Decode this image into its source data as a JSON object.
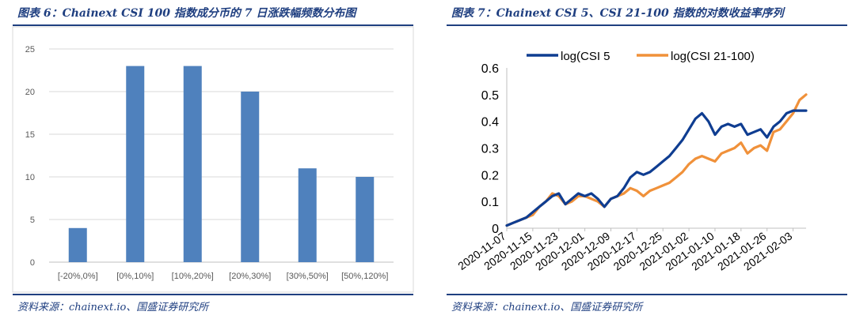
{
  "left": {
    "title": "图表 6：Chainext CSI 100 指数成分币的 7 日涨跌幅频数分布图",
    "source": "资料来源：chainext.io、国盛证券研究所"
  },
  "right": {
    "title": "图表 7：Chainext CSI 5、CSI 21-100 指数的对数收益率序列",
    "source": "资料来源：chainext.io、国盛证券研究所"
  },
  "colors": {
    "brand": "#1f3f80",
    "bar": "#4f81bd",
    "series1": "#0f3d91",
    "series2": "#f0913a"
  },
  "chart_data": [
    {
      "type": "bar",
      "title": "",
      "xlabel": "",
      "ylabel": "",
      "categories": [
        "[-20%,0%]",
        "[0%,10%]",
        "[10%,20%]",
        "[20%,30%]",
        "[30%,50%]",
        "[50%,120%]"
      ],
      "values": [
        4,
        23,
        23,
        20,
        11,
        10
      ],
      "ylim": [
        0,
        25
      ],
      "yticks": [
        0,
        5,
        10,
        15,
        20,
        25
      ],
      "grid": true,
      "legend": "none"
    },
    {
      "type": "line",
      "title": "",
      "xlabel": "",
      "ylabel": "",
      "ylim": [
        0,
        0.6
      ],
      "yticks": [
        "0",
        "0.1",
        "0.2",
        "0.3",
        "0.4",
        "0.5",
        "0.6"
      ],
      "xticks": [
        "2020-11-07",
        "2020-11-15",
        "2020-11-23",
        "2020-12-01",
        "2020-12-09",
        "2020-12-17",
        "2020-12-25",
        "2021-01-02",
        "2021-01-10",
        "2021-01-18",
        "2021-01-26",
        "2021-02-03"
      ],
      "grid": false,
      "legend": "top",
      "x": [
        "2020-11-07",
        "2020-11-09",
        "2020-11-11",
        "2020-11-13",
        "2020-11-15",
        "2020-11-17",
        "2020-11-19",
        "2020-11-21",
        "2020-11-23",
        "2020-11-25",
        "2020-11-27",
        "2020-11-29",
        "2020-12-01",
        "2020-12-03",
        "2020-12-05",
        "2020-12-07",
        "2020-12-09",
        "2020-12-11",
        "2020-12-13",
        "2020-12-15",
        "2020-12-17",
        "2020-12-19",
        "2020-12-21",
        "2020-12-23",
        "2020-12-25",
        "2020-12-27",
        "2020-12-29",
        "2020-12-31",
        "2021-01-02",
        "2021-01-04",
        "2021-01-06",
        "2021-01-08",
        "2021-01-10",
        "2021-01-12",
        "2021-01-14",
        "2021-01-16",
        "2021-01-18",
        "2021-01-20",
        "2021-01-22",
        "2021-01-24",
        "2021-01-26",
        "2021-01-28",
        "2021-01-30",
        "2021-02-01",
        "2021-02-03",
        "2021-02-05",
        "2021-02-07"
      ],
      "series": [
        {
          "name": "log(CSI 5",
          "values": [
            0.01,
            0.02,
            0.03,
            0.04,
            0.06,
            0.08,
            0.1,
            0.12,
            0.13,
            0.09,
            0.11,
            0.13,
            0.12,
            0.13,
            0.11,
            0.08,
            0.11,
            0.12,
            0.15,
            0.19,
            0.21,
            0.2,
            0.21,
            0.23,
            0.25,
            0.27,
            0.3,
            0.33,
            0.37,
            0.41,
            0.43,
            0.4,
            0.35,
            0.38,
            0.39,
            0.38,
            0.39,
            0.35,
            0.36,
            0.37,
            0.34,
            0.38,
            0.4,
            0.43,
            0.44,
            0.44,
            0.44
          ]
        },
        {
          "name": "log(CSI 21-100)",
          "values": [
            0.01,
            0.02,
            0.03,
            0.04,
            0.05,
            0.08,
            0.1,
            0.13,
            0.12,
            0.09,
            0.1,
            0.12,
            0.12,
            0.11,
            0.1,
            0.08,
            0.11,
            0.12,
            0.13,
            0.15,
            0.14,
            0.12,
            0.14,
            0.15,
            0.16,
            0.17,
            0.19,
            0.21,
            0.24,
            0.26,
            0.27,
            0.26,
            0.25,
            0.28,
            0.29,
            0.3,
            0.32,
            0.28,
            0.3,
            0.31,
            0.29,
            0.36,
            0.37,
            0.4,
            0.43,
            0.48,
            0.5
          ]
        }
      ]
    }
  ]
}
